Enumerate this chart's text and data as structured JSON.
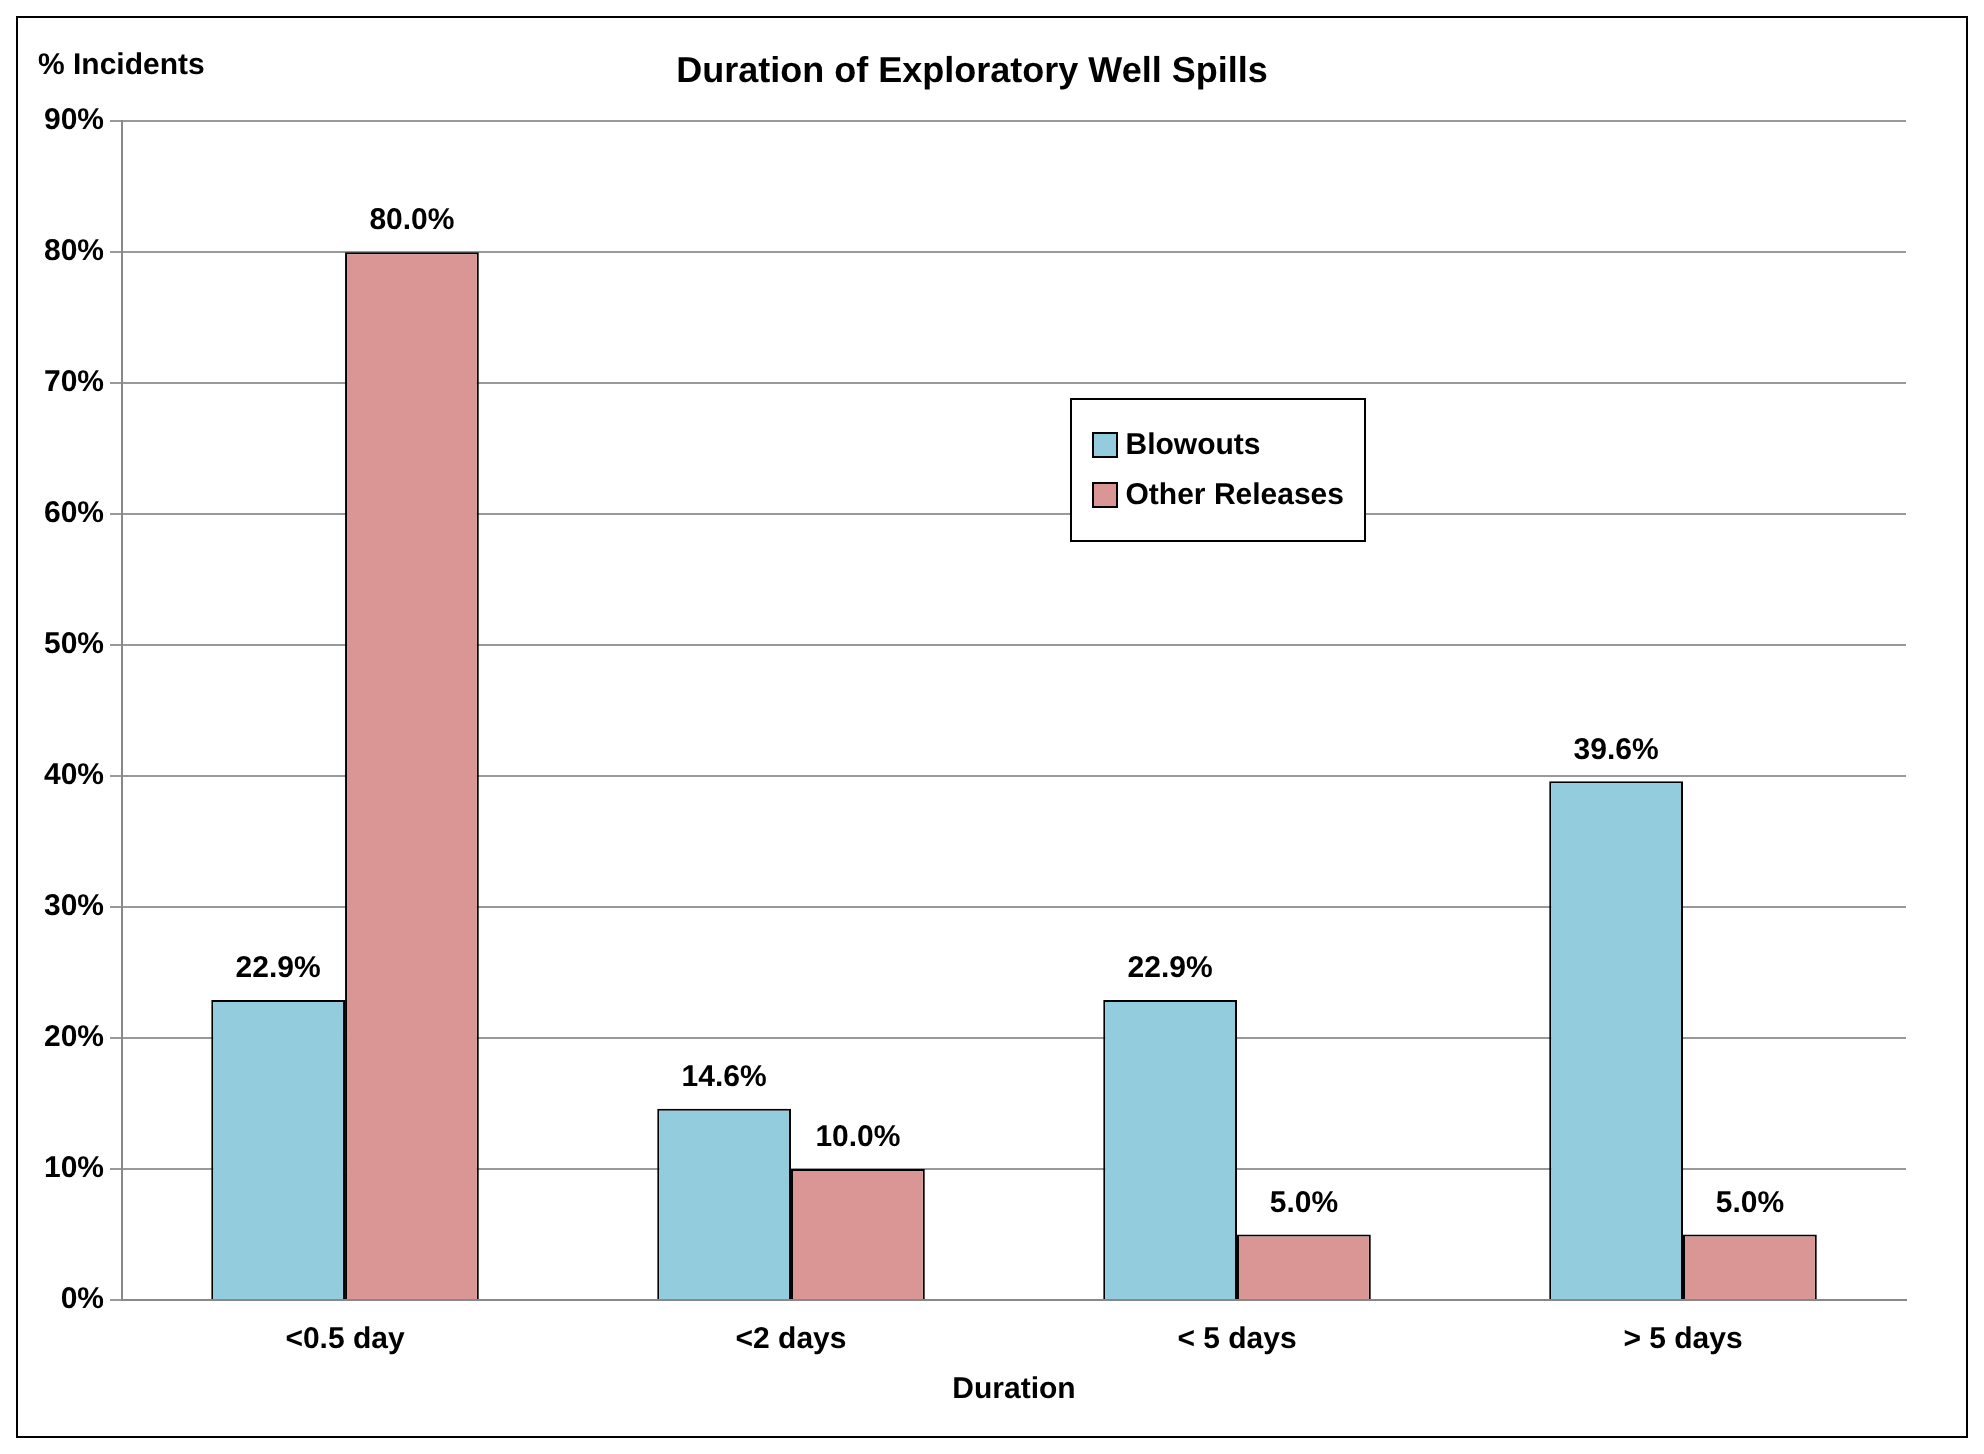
{
  "chart_data": {
    "type": "bar",
    "title": "Duration of Exploratory Well Spills",
    "ylabel": "% Incidents",
    "xlabel": "Duration",
    "categories": [
      "<0.5 day",
      "<2 days",
      "< 5 days",
      "> 5 days"
    ],
    "series": [
      {
        "name": "Blowouts",
        "color": "#93cddd",
        "values": [
          22.9,
          14.6,
          22.9,
          39.6
        ],
        "value_labels": [
          "22.9%",
          "14.6%",
          "22.9%",
          "39.6%"
        ]
      },
      {
        "name": "Other Releases",
        "color": "#d99694",
        "values": [
          80.0,
          10.0,
          5.0,
          5.0
        ],
        "value_labels": [
          "80.0%",
          "10.0%",
          "5.0%",
          "5.0%"
        ]
      }
    ],
    "ylim": [
      0,
      90
    ],
    "yticks": [
      {
        "value": 0,
        "label": "0%"
      },
      {
        "value": 10,
        "label": "10%"
      },
      {
        "value": 20,
        "label": "20%"
      },
      {
        "value": 30,
        "label": "30%"
      },
      {
        "value": 40,
        "label": "40%"
      },
      {
        "value": 50,
        "label": "50%"
      },
      {
        "value": 60,
        "label": "60%"
      },
      {
        "value": 70,
        "label": "70%"
      },
      {
        "value": 80,
        "label": "80%"
      },
      {
        "value": 90,
        "label": "90%"
      }
    ],
    "grid": "y",
    "legend": "top right"
  }
}
